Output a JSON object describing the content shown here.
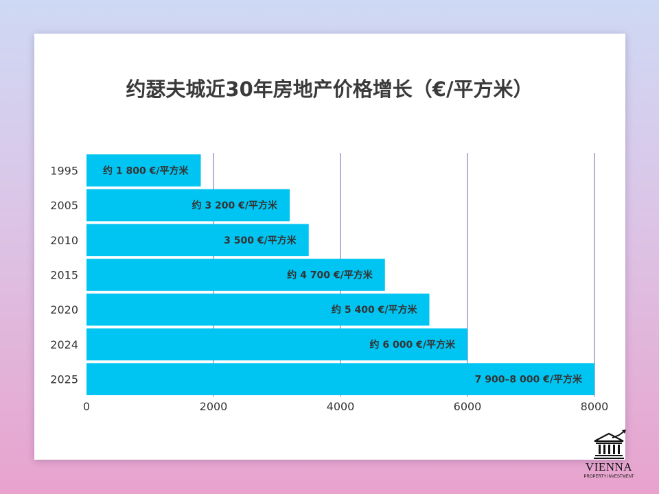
{
  "chart_data": {
    "type": "bar",
    "orientation": "horizontal",
    "title": "约瑟夫城近30年房地产价格增长（€/平方米）",
    "xlabel": "",
    "ylabel": "",
    "categories": [
      "1995",
      "2005",
      "2010",
      "2015",
      "2020",
      "2024",
      "2025"
    ],
    "values": [
      1800,
      3200,
      3500,
      4700,
      5400,
      6000,
      8000
    ],
    "data_labels": [
      "约 1 800 €/平方米",
      "约 3 200 €/平方米",
      "3 500 €/平方米",
      "约 4 700 €/平方米",
      "约 5 400 €/平方米",
      "约 6 000 €/平方米",
      "7 900–8 000 €/平方米"
    ],
    "xlim": [
      0,
      8000
    ],
    "x_ticks": [
      0,
      2000,
      4000,
      6000,
      8000
    ],
    "grid": "vertical",
    "legend": "none",
    "colors": {
      "bar": "#00c4f1",
      "grid": "#8d89c2",
      "text": "#333333",
      "title": "#3a3a3a"
    }
  },
  "brand": {
    "name": "VIENNA",
    "subtitle": "PROPERTY INVESTMENT",
    "icon": "bank-building-icon"
  }
}
